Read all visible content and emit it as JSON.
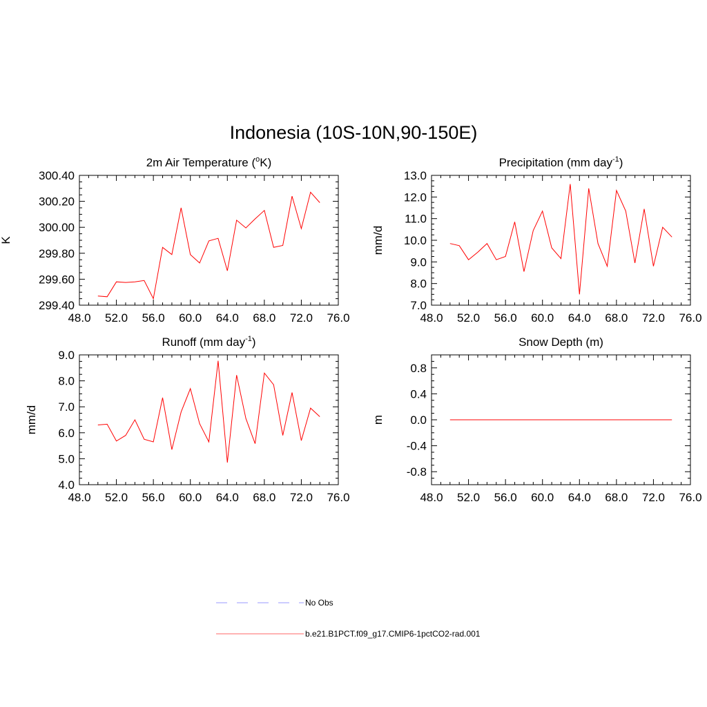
{
  "figure": {
    "title": "Indonesia (10S-10N,90-150E)"
  },
  "legend": {
    "entries": [
      {
        "label": "No Obs",
        "color": "#9999ff",
        "dashed": true
      },
      {
        "label": "b.e21.B1PCT.f09_g17.CMIP6-1pctCO2-rad.001",
        "color": "#ff6666",
        "dashed": false
      }
    ]
  },
  "chart_data": [
    {
      "type": "line",
      "title": "2m Air Temperature (°K)",
      "ylabel": "K",
      "xlim": [
        48,
        76
      ],
      "ylim": [
        299.4,
        300.4
      ],
      "xticks": [
        "48.0",
        "52.0",
        "56.0",
        "60.0",
        "64.0",
        "68.0",
        "72.0",
        "76.0"
      ],
      "yticks": [
        "299.40",
        "299.60",
        "299.80",
        "300.00",
        "300.20",
        "300.40"
      ],
      "grid": false,
      "series": [
        {
          "color": "#ff0000",
          "x": [
            50,
            51,
            52,
            53,
            54,
            55,
            56,
            57,
            58,
            59,
            60,
            61,
            62,
            63,
            64,
            65,
            66,
            67,
            68,
            69,
            70,
            71,
            72,
            73,
            74
          ],
          "y": [
            299.47,
            299.465,
            299.58,
            299.575,
            299.58,
            299.59,
            299.45,
            299.845,
            299.79,
            300.15,
            299.79,
            299.725,
            299.895,
            299.915,
            299.665,
            300.055,
            299.995,
            300.065,
            300.13,
            299.845,
            299.86,
            300.24,
            299.99,
            300.27,
            300.19
          ]
        }
      ]
    },
    {
      "type": "line",
      "title": "Precipitation (mm day-1)",
      "ylabel": "mm/d",
      "xlim": [
        48,
        76
      ],
      "ylim": [
        7.0,
        13.0
      ],
      "xticks": [
        "48.0",
        "52.0",
        "56.0",
        "60.0",
        "64.0",
        "68.0",
        "72.0",
        "76.0"
      ],
      "yticks": [
        "7.0",
        "8.0",
        "9.0",
        "10.0",
        "11.0",
        "12.0",
        "13.0"
      ],
      "grid": false,
      "series": [
        {
          "color": "#ff0000",
          "x": [
            50,
            51,
            52,
            53,
            54,
            55,
            56,
            57,
            58,
            59,
            60,
            61,
            62,
            63,
            64,
            65,
            66,
            67,
            68,
            69,
            70,
            71,
            72,
            73,
            74
          ],
          "y": [
            9.85,
            9.75,
            9.1,
            9.45,
            9.85,
            9.1,
            9.25,
            10.85,
            8.55,
            10.45,
            11.35,
            9.65,
            9.15,
            12.6,
            7.5,
            12.4,
            9.85,
            8.8,
            12.3,
            11.35,
            8.95,
            11.45,
            8.8,
            10.6,
            10.15
          ]
        }
      ]
    },
    {
      "type": "line",
      "title": "Runoff (mm day-1)",
      "ylabel": "mm/d",
      "xlim": [
        48,
        76
      ],
      "ylim": [
        4.0,
        9.0
      ],
      "xticks": [
        "48.0",
        "52.0",
        "56.0",
        "60.0",
        "64.0",
        "68.0",
        "72.0",
        "76.0"
      ],
      "yticks": [
        "4.0",
        "5.0",
        "6.0",
        "7.0",
        "8.0",
        "9.0"
      ],
      "grid": false,
      "series": [
        {
          "color": "#ff0000",
          "x": [
            50,
            51,
            52,
            53,
            54,
            55,
            56,
            57,
            58,
            59,
            60,
            61,
            62,
            63,
            64,
            65,
            66,
            67,
            68,
            69,
            70,
            71,
            72,
            73,
            74
          ],
          "y": [
            6.3,
            6.33,
            5.68,
            5.9,
            6.5,
            5.75,
            5.65,
            7.35,
            5.35,
            6.8,
            7.7,
            6.35,
            5.65,
            8.77,
            4.85,
            8.22,
            6.55,
            5.58,
            8.3,
            7.85,
            5.9,
            7.55,
            5.7,
            6.95,
            6.62
          ]
        }
      ]
    },
    {
      "type": "line",
      "title": "Snow Depth (m)",
      "ylabel": "m",
      "xlim": [
        48,
        76
      ],
      "ylim": [
        -1.0,
        1.0
      ],
      "xticks": [
        "48.0",
        "52.0",
        "56.0",
        "60.0",
        "64.0",
        "68.0",
        "72.0",
        "76.0"
      ],
      "yticks": [
        "-0.8",
        "-0.4",
        "0.0",
        "0.4",
        "0.8"
      ],
      "ytick_values": [
        -0.8,
        -0.4,
        0.0,
        0.4,
        0.8
      ],
      "grid": false,
      "series": [
        {
          "color": "#ff0000",
          "x": [
            50,
            51,
            52,
            53,
            54,
            55,
            56,
            57,
            58,
            59,
            60,
            61,
            62,
            63,
            64,
            65,
            66,
            67,
            68,
            69,
            70,
            71,
            72,
            73,
            74
          ],
          "y": [
            0,
            0,
            0,
            0,
            0,
            0,
            0,
            0,
            0,
            0,
            0,
            0,
            0,
            0,
            0,
            0,
            0,
            0,
            0,
            0,
            0,
            0,
            0,
            0,
            0
          ]
        }
      ]
    }
  ]
}
